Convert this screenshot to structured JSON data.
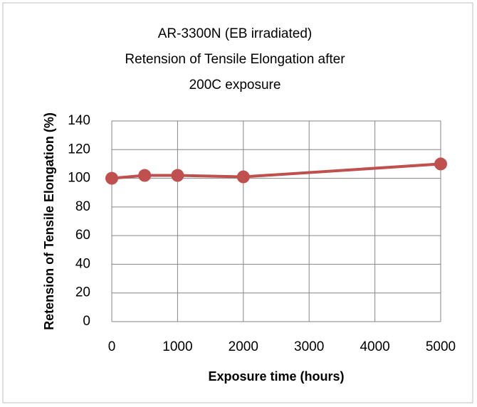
{
  "chart_data": {
    "type": "line",
    "title": [
      "AR-3300N (EB irradiated)",
      "Retension of Tensile Elongation after",
      "200C  exposure"
    ],
    "x_label": "Exposure time (hours)",
    "y_label": "Retension of Tensile Elongation (%)",
    "x": [
      0,
      500,
      1000,
      2000,
      5000
    ],
    "series": [
      {
        "name": "AR-3300N",
        "color": "#c0504d",
        "values": [
          100,
          102,
          102,
          101,
          110
        ]
      }
    ],
    "xlim": [
      0,
      5000
    ],
    "xticks": [
      0,
      1000,
      2000,
      3000,
      4000,
      5000
    ],
    "ylim": [
      0,
      140
    ],
    "yticks": [
      0,
      20,
      40,
      60,
      80,
      100,
      120,
      140
    ],
    "grid": true,
    "legend": false
  }
}
